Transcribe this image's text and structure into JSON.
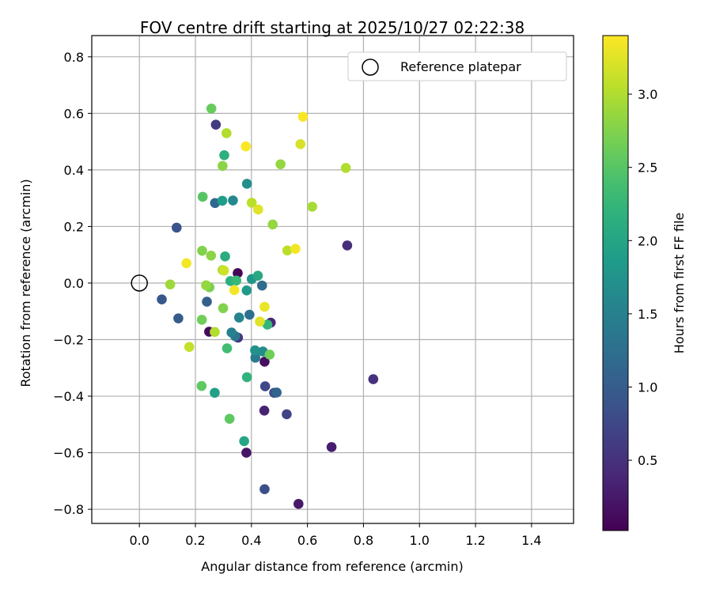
{
  "chart_data": {
    "type": "scatter",
    "title": "FOV centre drift starting at 2025/10/27 02:22:38",
    "xlabel": "Angular distance from reference (arcmin)",
    "ylabel": "Rotation from reference (arcmin)",
    "xlim": [
      -0.17,
      1.55
    ],
    "ylim": [
      -0.85,
      0.875
    ],
    "xticks": [
      0.0,
      0.2,
      0.4,
      0.6,
      0.8,
      1.0,
      1.2,
      1.4
    ],
    "xtick_labels": [
      "0.0",
      "0.2",
      "0.4",
      "0.6",
      "0.8",
      "1.0",
      "1.2",
      "1.4"
    ],
    "yticks": [
      -0.8,
      -0.6,
      -0.4,
      -0.2,
      0.0,
      0.2,
      0.4,
      0.6,
      0.8
    ],
    "ytick_labels": [
      "−0.8",
      "−0.6",
      "−0.4",
      "−0.2",
      "0.0",
      "0.2",
      "0.4",
      "0.6",
      "0.8"
    ],
    "grid": true,
    "legend": {
      "placement": "top-right",
      "label": "Reference platepar"
    },
    "reference_point": {
      "x": 0.0,
      "y": 0.0
    },
    "colorbar": {
      "label": "Hours from first FF file",
      "colormap": "viridis",
      "vmin": 0.02,
      "vmax": 3.4,
      "ticks": [
        0.5,
        1.0,
        1.5,
        2.0,
        2.5,
        3.0
      ],
      "tick_labels": [
        "0.5",
        "1.0",
        "1.5",
        "2.0",
        "2.5",
        "3.0"
      ]
    },
    "points": [
      {
        "x": 0.351,
        "y": 0.035,
        "c": 0.05
      },
      {
        "x": 0.249,
        "y": -0.172,
        "c": 0.1
      },
      {
        "x": 0.447,
        "y": -0.278,
        "c": 0.15
      },
      {
        "x": 0.382,
        "y": -0.6,
        "c": 0.2
      },
      {
        "x": 0.568,
        "y": -0.781,
        "c": 0.25
      },
      {
        "x": 0.686,
        "y": -0.58,
        "c": 0.3
      },
      {
        "x": 0.446,
        "y": -0.451,
        "c": 0.35
      },
      {
        "x": 0.469,
        "y": -0.14,
        "c": 0.4
      },
      {
        "x": 0.742,
        "y": 0.133,
        "c": 0.45
      },
      {
        "x": 0.835,
        "y": -0.34,
        "c": 0.5
      },
      {
        "x": 0.352,
        "y": -0.193,
        "c": 0.55
      },
      {
        "x": 0.273,
        "y": 0.56,
        "c": 0.6
      },
      {
        "x": 0.526,
        "y": -0.464,
        "c": 0.7
      },
      {
        "x": 0.449,
        "y": -0.365,
        "c": 0.75
      },
      {
        "x": 0.481,
        "y": -0.388,
        "c": 0.8
      },
      {
        "x": 0.447,
        "y": -0.729,
        "c": 0.85
      },
      {
        "x": 0.133,
        "y": 0.196,
        "c": 0.9
      },
      {
        "x": 0.08,
        "y": -0.058,
        "c": 0.95
      },
      {
        "x": 0.139,
        "y": -0.125,
        "c": 1.0
      },
      {
        "x": 0.241,
        "y": -0.066,
        "c": 1.05
      },
      {
        "x": 0.49,
        "y": -0.387,
        "c": 1.1
      },
      {
        "x": 0.27,
        "y": 0.283,
        "c": 1.15
      },
      {
        "x": 0.438,
        "y": -0.009,
        "c": 1.2
      },
      {
        "x": 0.393,
        "y": -0.112,
        "c": 1.25
      },
      {
        "x": 0.342,
        "y": -0.188,
        "c": 1.35
      },
      {
        "x": 0.414,
        "y": -0.264,
        "c": 1.4
      },
      {
        "x": 0.329,
        "y": -0.175,
        "c": 1.5
      },
      {
        "x": 0.356,
        "y": -0.122,
        "c": 1.55
      },
      {
        "x": 0.334,
        "y": 0.292,
        "c": 1.6
      },
      {
        "x": 0.441,
        "y": -0.242,
        "c": 1.65
      },
      {
        "x": 0.384,
        "y": 0.351,
        "c": 1.7
      },
      {
        "x": 0.413,
        "y": -0.238,
        "c": 1.75
      },
      {
        "x": 0.401,
        "y": 0.014,
        "c": 1.8
      },
      {
        "x": 0.383,
        "y": -0.026,
        "c": 1.85
      },
      {
        "x": 0.296,
        "y": 0.291,
        "c": 1.9
      },
      {
        "x": 0.269,
        "y": -0.388,
        "c": 1.95
      },
      {
        "x": 0.374,
        "y": -0.559,
        "c": 2.0
      },
      {
        "x": 0.423,
        "y": 0.026,
        "c": 2.05
      },
      {
        "x": 0.306,
        "y": 0.094,
        "c": 2.1
      },
      {
        "x": 0.325,
        "y": 0.007,
        "c": 2.15
      },
      {
        "x": 0.303,
        "y": 0.452,
        "c": 2.15
      },
      {
        "x": 0.384,
        "y": -0.333,
        "c": 2.2
      },
      {
        "x": 0.457,
        "y": -0.147,
        "c": 2.25
      },
      {
        "x": 0.346,
        "y": 0.009,
        "c": 2.3
      },
      {
        "x": 0.313,
        "y": -0.231,
        "c": 2.35
      },
      {
        "x": 0.226,
        "y": 0.305,
        "c": 2.5
      },
      {
        "x": 0.222,
        "y": -0.364,
        "c": 2.55
      },
      {
        "x": 0.322,
        "y": -0.48,
        "c": 2.55
      },
      {
        "x": 0.257,
        "y": 0.617,
        "c": 2.6
      },
      {
        "x": 0.223,
        "y": -0.13,
        "c": 2.65
      },
      {
        "x": 0.465,
        "y": -0.253,
        "c": 2.65
      },
      {
        "x": 0.25,
        "y": -0.015,
        "c": 2.7
      },
      {
        "x": 0.224,
        "y": 0.114,
        "c": 2.75
      },
      {
        "x": 0.299,
        "y": -0.089,
        "c": 2.75
      },
      {
        "x": 0.256,
        "y": 0.097,
        "c": 2.8
      },
      {
        "x": 0.297,
        "y": 0.414,
        "c": 2.8
      },
      {
        "x": 0.238,
        "y": -0.008,
        "c": 2.85
      },
      {
        "x": 0.476,
        "y": 0.207,
        "c": 2.85
      },
      {
        "x": 0.504,
        "y": 0.42,
        "c": 2.85
      },
      {
        "x": 0.11,
        "y": -0.005,
        "c": 2.9
      },
      {
        "x": 0.297,
        "y": 0.046,
        "c": 2.95
      },
      {
        "x": 0.617,
        "y": 0.27,
        "c": 2.95
      },
      {
        "x": 0.269,
        "y": -0.173,
        "c": 3.0
      },
      {
        "x": 0.311,
        "y": 0.53,
        "c": 3.0
      },
      {
        "x": 0.737,
        "y": 0.407,
        "c": 3.0
      },
      {
        "x": 0.528,
        "y": 0.115,
        "c": 3.05
      },
      {
        "x": 0.401,
        "y": 0.284,
        "c": 3.05
      },
      {
        "x": 0.178,
        "y": -0.226,
        "c": 3.1
      },
      {
        "x": 0.302,
        "y": 0.044,
        "c": 3.15
      },
      {
        "x": 0.575,
        "y": 0.491,
        "c": 3.2
      },
      {
        "x": 0.424,
        "y": 0.26,
        "c": 3.25
      },
      {
        "x": 0.43,
        "y": -0.136,
        "c": 3.25
      },
      {
        "x": 0.447,
        "y": -0.084,
        "c": 3.3
      },
      {
        "x": 0.168,
        "y": 0.07,
        "c": 3.35
      },
      {
        "x": 0.339,
        "y": -0.025,
        "c": 3.35
      },
      {
        "x": 0.557,
        "y": 0.121,
        "c": 3.35
      },
      {
        "x": 0.38,
        "y": 0.483,
        "c": 3.38
      },
      {
        "x": 0.584,
        "y": 0.588,
        "c": 3.38
      }
    ]
  }
}
